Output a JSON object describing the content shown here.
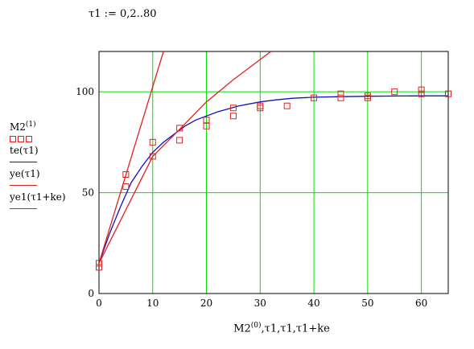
{
  "definition": "τ1 := 0,2..80",
  "legend": {
    "m2_base": "M2",
    "m2_sup": "(1)",
    "te": "te(τ1)",
    "ye": "ye(τ1)",
    "ye1": "ye1(τ1+ke)"
  },
  "xlabel": {
    "base": "M2",
    "sup": "(0)",
    "rest": ",τ1,τ1,τ1+ke"
  },
  "colors": {
    "grid": "#00e000",
    "marker": "#e02020",
    "te": "#1010c0",
    "ye": "#e02020",
    "ye1": "#e02020"
  },
  "chart_data": {
    "type": "scatter",
    "xlim": [
      0,
      65
    ],
    "ylim": [
      0,
      120
    ],
    "xticks": [
      0,
      10,
      20,
      30,
      40,
      50,
      60
    ],
    "yticks": [
      0,
      50,
      100
    ],
    "grid": true,
    "series": [
      {
        "name": "M2(1)",
        "kind": "markers",
        "points": [
          [
            0,
            13
          ],
          [
            0,
            15
          ],
          [
            5,
            53
          ],
          [
            5,
            59
          ],
          [
            10,
            68
          ],
          [
            10,
            75
          ],
          [
            15,
            76
          ],
          [
            15,
            82
          ],
          [
            20,
            83
          ],
          [
            20,
            86
          ],
          [
            25,
            88
          ],
          [
            25,
            92
          ],
          [
            30,
            92
          ],
          [
            30,
            93
          ],
          [
            35,
            93
          ],
          [
            40,
            97
          ],
          [
            45,
            97
          ],
          [
            45,
            99
          ],
          [
            50,
            97
          ],
          [
            50,
            98
          ],
          [
            55,
            100
          ],
          [
            60,
            99
          ],
          [
            60,
            101
          ],
          [
            65,
            99
          ]
        ]
      },
      {
        "name": "te(τ1)",
        "kind": "line",
        "points": [
          [
            0,
            15
          ],
          [
            2,
            30
          ],
          [
            4,
            43
          ],
          [
            6,
            55
          ],
          [
            8,
            63
          ],
          [
            10,
            70
          ],
          [
            12,
            75
          ],
          [
            14,
            79
          ],
          [
            16,
            83
          ],
          [
            18,
            86
          ],
          [
            20,
            88
          ],
          [
            22,
            90
          ],
          [
            24,
            91.5
          ],
          [
            26,
            93
          ],
          [
            28,
            94
          ],
          [
            30,
            95
          ],
          [
            33,
            96
          ],
          [
            36,
            96.8
          ],
          [
            40,
            97.3
          ],
          [
            45,
            97.6
          ],
          [
            50,
            97.8
          ],
          [
            55,
            97.9
          ],
          [
            60,
            98
          ],
          [
            65,
            98
          ]
        ]
      },
      {
        "name": "ye(τ1)",
        "kind": "line",
        "points": [
          [
            0,
            15
          ],
          [
            12,
            120
          ]
        ]
      },
      {
        "name": "ye1(τ1+ke)",
        "kind": "line",
        "points": [
          [
            0,
            15
          ],
          [
            10,
            68
          ],
          [
            14.5,
            80
          ],
          [
            20,
            95
          ],
          [
            25,
            106
          ],
          [
            30,
            116
          ],
          [
            32,
            120
          ]
        ]
      }
    ]
  }
}
